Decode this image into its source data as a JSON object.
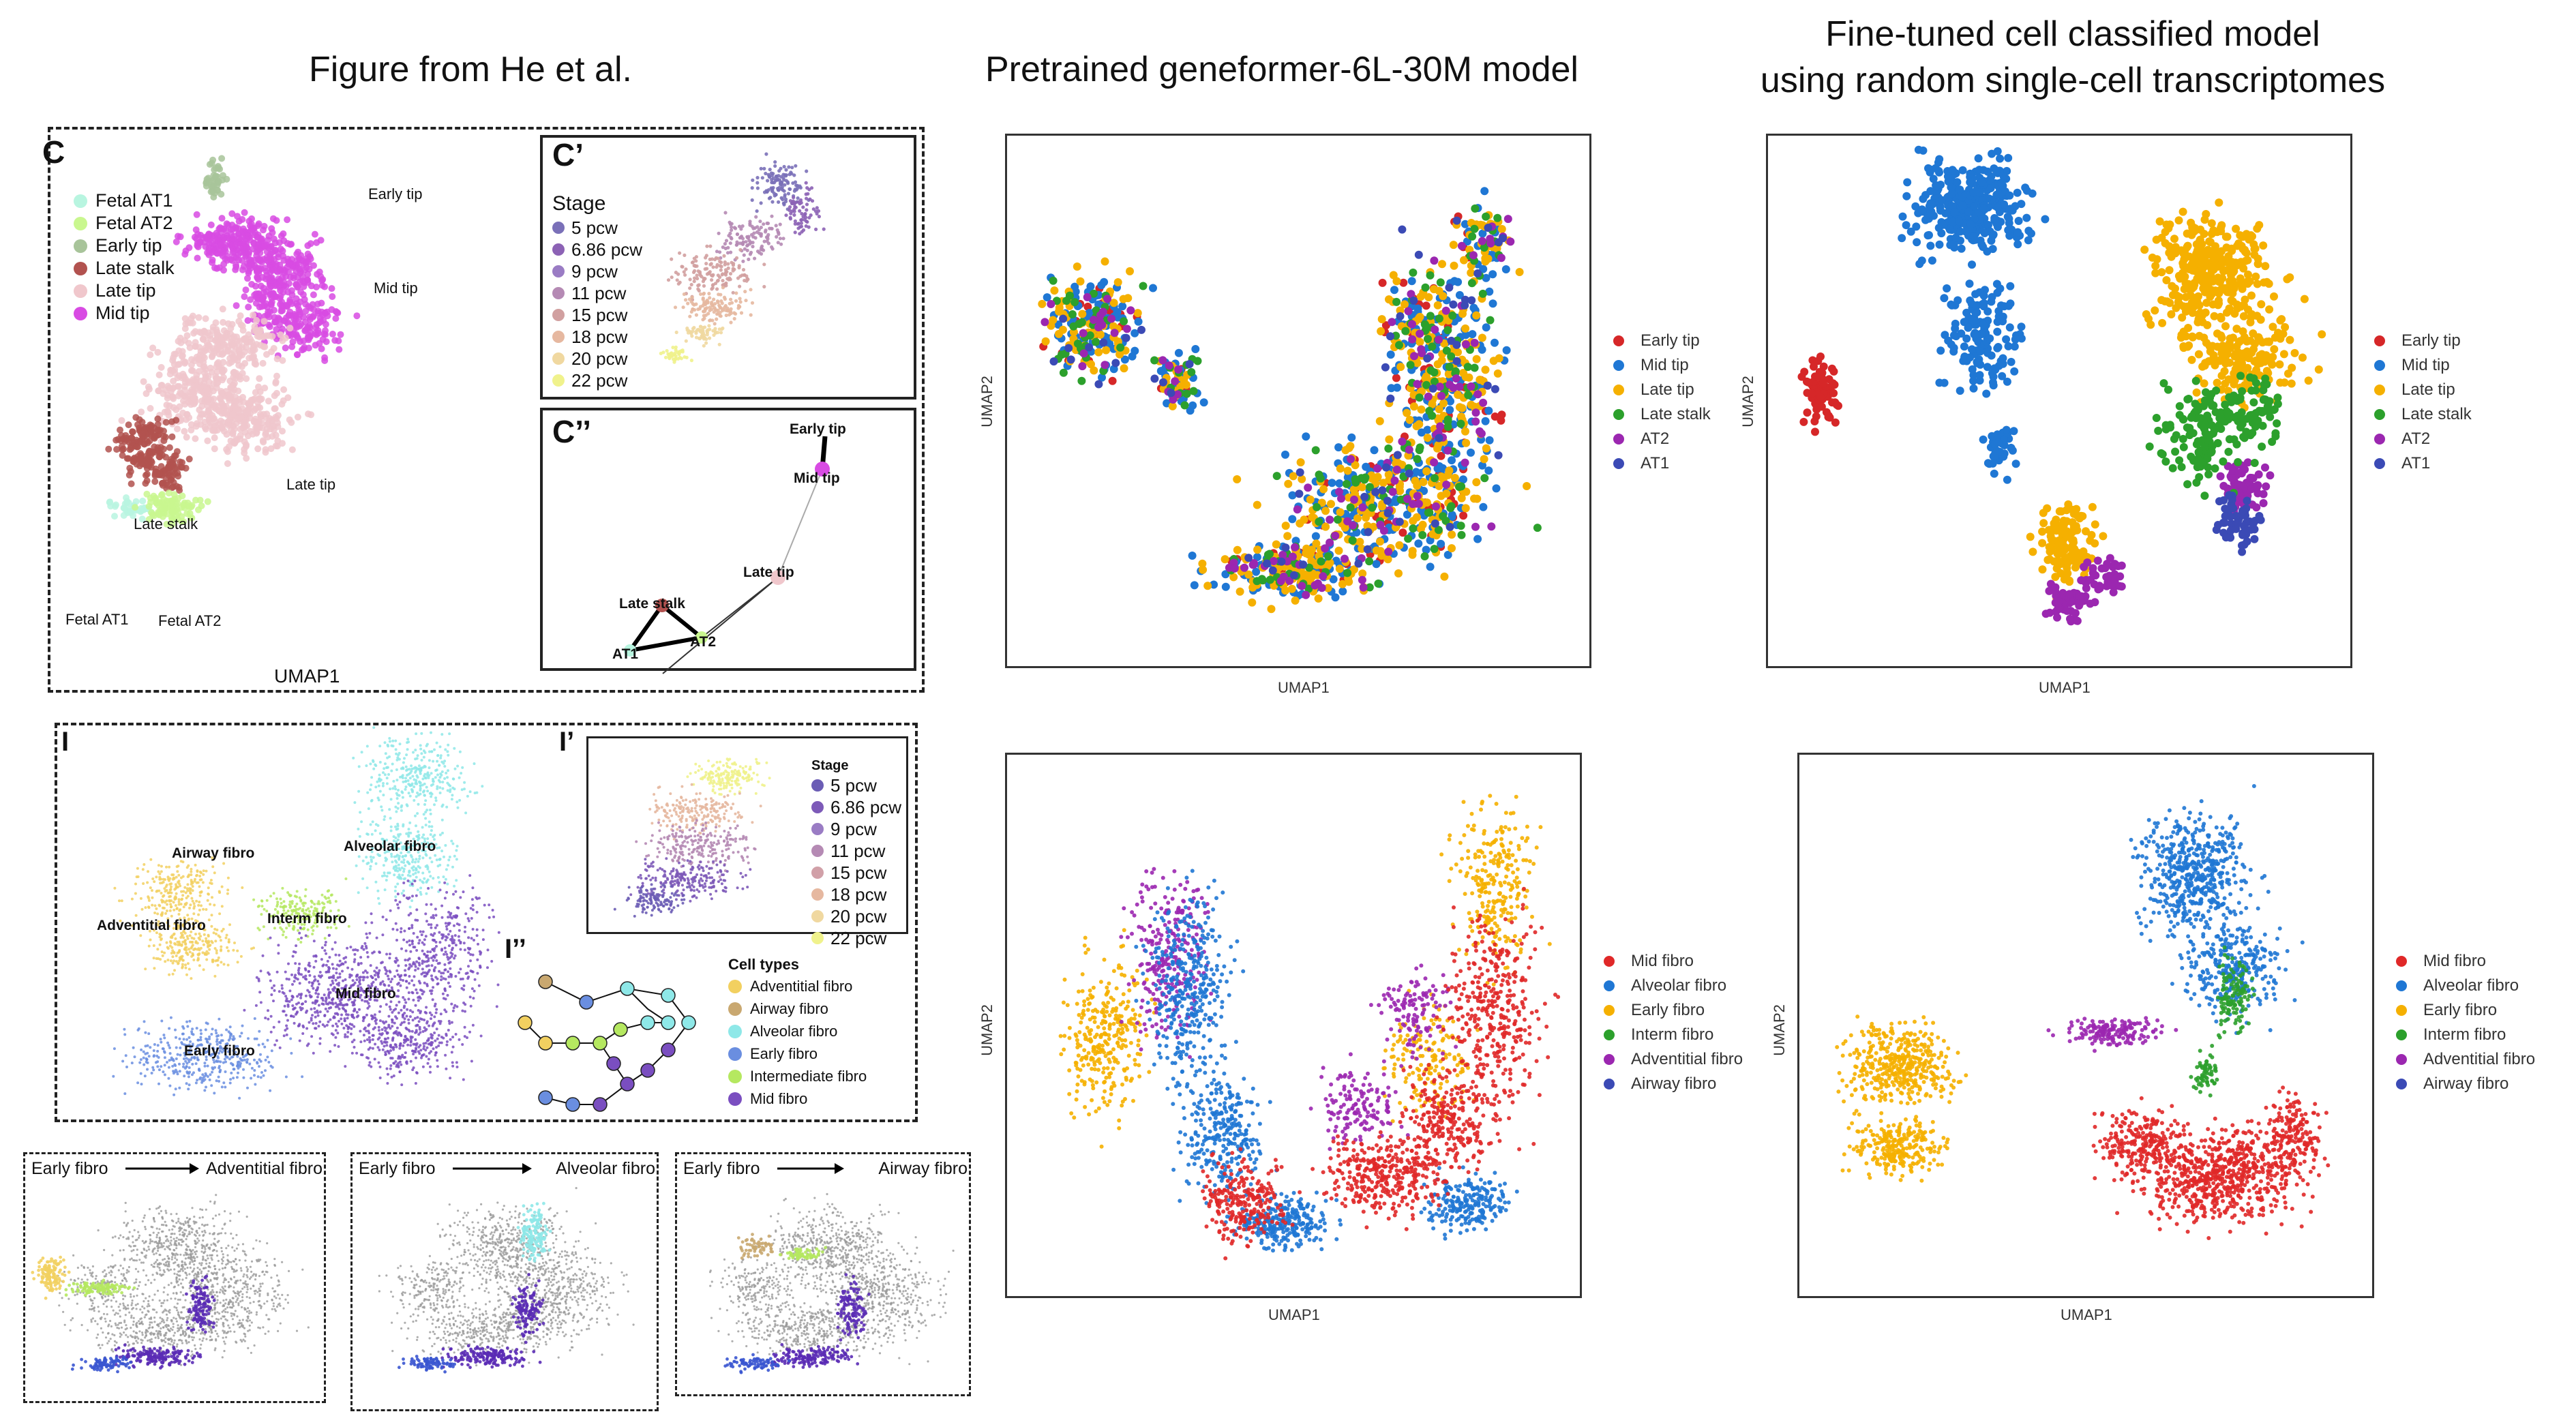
{
  "titles": {
    "left": "Figure from He et al.",
    "middle": "Pretrained geneformer-6L-30M model",
    "right_line1": "Fine-tuned cell classified model",
    "right_line2": "using random single-cell transcriptomes"
  },
  "figC": {
    "panel_label": "C",
    "legend": [
      {
        "label": "Fetal AT1",
        "color": "#b8f5e0"
      },
      {
        "label": "Fetal AT2",
        "color": "#c9f78f"
      },
      {
        "label": "Early tip",
        "color": "#a8c49a"
      },
      {
        "label": "Late stalk",
        "color": "#b2524f"
      },
      {
        "label": "Late tip",
        "color": "#f0c7cc"
      },
      {
        "label": "Mid tip",
        "color": "#d84be3"
      }
    ],
    "cluster_labels": [
      "Early tip",
      "Mid tip",
      "Late tip",
      "Late stalk",
      "Fetal AT1",
      "Fetal AT2"
    ],
    "xlabel": "UMAP1"
  },
  "figCprime": {
    "panel_label": "C’",
    "stage_title": "Stage",
    "stages": [
      {
        "label": "5 pcw",
        "color": "#7a70b8"
      },
      {
        "label": "6.86 pcw",
        "color": "#8c62b5"
      },
      {
        "label": "9 pcw",
        "color": "#9a7cc4"
      },
      {
        "label": "11 pcw",
        "color": "#b58ab4"
      },
      {
        "label": "15 pcw",
        "color": "#d1a0a0"
      },
      {
        "label": "18 pcw",
        "color": "#e6b8a0"
      },
      {
        "label": "20 pcw",
        "color": "#f0d8a0"
      },
      {
        "label": "22 pcw",
        "color": "#f0f28c"
      }
    ]
  },
  "figCdouble": {
    "panel_label": "C’’",
    "nodes": [
      "Early tip",
      "Mid tip",
      "Late tip",
      "Late stalk",
      "AT2",
      "AT1"
    ]
  },
  "figI": {
    "panel_label": "I",
    "cluster_labels": [
      "Airway fibro",
      "Alveolar fibro",
      "Adventitial fibro",
      "Interm fibro",
      "Mid fibro",
      "Early fibro"
    ]
  },
  "figIprime": {
    "panel_label": "I’",
    "stage_title": "Stage",
    "stages": [
      {
        "label": "5 pcw",
        "color": "#6b5db5"
      },
      {
        "label": "6.86 pcw",
        "color": "#7d5ab8"
      },
      {
        "label": "9 pcw",
        "color": "#9a7cc4"
      },
      {
        "label": "11 pcw",
        "color": "#b58ab4"
      },
      {
        "label": "15 pcw",
        "color": "#d1a0a8"
      },
      {
        "label": "18 pcw",
        "color": "#e6b8a0"
      },
      {
        "label": "20 pcw",
        "color": "#f0d8a0"
      },
      {
        "label": "22 pcw",
        "color": "#f0f28c"
      }
    ]
  },
  "figIdouble": {
    "panel_label": "I’’",
    "celltypes_title": "Cell types",
    "celltypes": [
      {
        "label": "Adventitial fibro",
        "color": "#f2d060"
      },
      {
        "label": "Airway fibro",
        "color": "#c9a870"
      },
      {
        "label": "Alveolar fibro",
        "color": "#8ee8e8"
      },
      {
        "label": "Early fibro",
        "color": "#6a8ee0"
      },
      {
        "label": "Intermediate fibro",
        "color": "#b5e860"
      },
      {
        "label": "Mid fibro",
        "color": "#7a4ec0"
      }
    ]
  },
  "trajectories": [
    {
      "from": "Early fibro",
      "to": "Adventitial fibro"
    },
    {
      "from": "Early fibro",
      "to": "Alveolar fibro"
    },
    {
      "from": "Early fibro",
      "to": "Airway fibro"
    }
  ],
  "chart_data": [
    {
      "type": "scatter",
      "title": "",
      "xlabel": "UMAP1",
      "ylabel": "UMAP2",
      "legend_position": "right",
      "series": [
        {
          "name": "Early tip",
          "color": "#d62728"
        },
        {
          "name": "Mid tip",
          "color": "#1f77d4"
        },
        {
          "name": "Late tip",
          "color": "#f5b000"
        },
        {
          "name": "Late stalk",
          "color": "#2ca02c"
        },
        {
          "name": "AT2",
          "color": "#9b27b0"
        },
        {
          "name": "AT1",
          "color": "#3b4ab5"
        }
      ]
    },
    {
      "type": "scatter",
      "title": "",
      "xlabel": "UMAP1",
      "ylabel": "UMAP2",
      "legend_position": "right",
      "series": [
        {
          "name": "Early tip",
          "color": "#d62728"
        },
        {
          "name": "Mid tip",
          "color": "#1f77d4"
        },
        {
          "name": "Late tip",
          "color": "#f5b000"
        },
        {
          "name": "Late stalk",
          "color": "#2ca02c"
        },
        {
          "name": "AT2",
          "color": "#9b27b0"
        },
        {
          "name": "AT1",
          "color": "#3b4ab5"
        }
      ]
    },
    {
      "type": "scatter",
      "title": "",
      "xlabel": "UMAP1",
      "ylabel": "UMAP2",
      "legend_position": "right",
      "series": [
        {
          "name": "Mid fibro",
          "color": "#e02828"
        },
        {
          "name": "Alveolar fibro",
          "color": "#1f77d4"
        },
        {
          "name": "Early fibro",
          "color": "#f5b000"
        },
        {
          "name": "Interm fibro",
          "color": "#2ca02c"
        },
        {
          "name": "Adventitial fibro",
          "color": "#9b27b0"
        },
        {
          "name": "Airway fibro",
          "color": "#3b4ab5"
        }
      ]
    },
    {
      "type": "scatter",
      "title": "",
      "xlabel": "UMAP1",
      "ylabel": "UMAP2",
      "legend_position": "right",
      "series": [
        {
          "name": "Mid fibro",
          "color": "#e02828"
        },
        {
          "name": "Alveolar fibro",
          "color": "#1f77d4"
        },
        {
          "name": "Early fibro",
          "color": "#f5b000"
        },
        {
          "name": "Interm fibro",
          "color": "#2ca02c"
        },
        {
          "name": "Adventitial fibro",
          "color": "#9b27b0"
        },
        {
          "name": "Airway fibro",
          "color": "#3b4ab5"
        }
      ]
    }
  ]
}
